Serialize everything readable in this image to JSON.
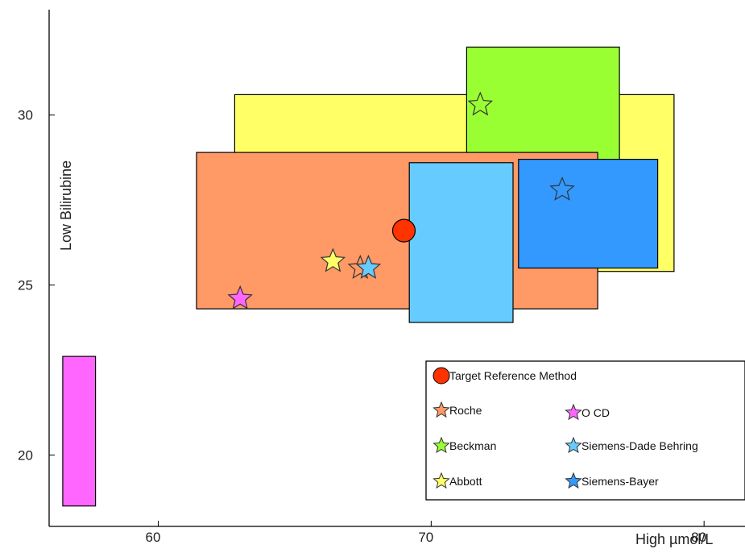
{
  "chart_data": {
    "type": "scatter",
    "title": "",
    "xlabel": "High µmol/L",
    "ylabel": "Low Bilirubine",
    "xlim": [
      56,
      81.5
    ],
    "ylim": [
      17.9,
      33.1
    ],
    "xticks": [
      60,
      70,
      80
    ],
    "yticks": [
      20,
      25,
      30
    ],
    "grid": false,
    "rectangles": [
      {
        "series": "Abbott",
        "x": [
          62.8,
          78.9
        ],
        "y": [
          25.4,
          30.6
        ],
        "color": "#ffff66"
      },
      {
        "series": "Beckman",
        "x": [
          71.3,
          76.9
        ],
        "y": [
          27.7,
          32.0
        ],
        "color": "#99ff33"
      },
      {
        "series": "Roche",
        "x": [
          61.4,
          76.1
        ],
        "y": [
          24.3,
          28.9
        ],
        "color": "#ff9966"
      },
      {
        "series": "Siemens-Dade Behring",
        "x": [
          69.2,
          73.0
        ],
        "y": [
          23.9,
          28.6
        ],
        "color": "#66ccff"
      },
      {
        "series": "Siemens-Bayer",
        "x": [
          73.2,
          78.3
        ],
        "y": [
          25.5,
          28.7
        ],
        "color": "#3399ff"
      },
      {
        "series": "OCD",
        "x": [
          56.5,
          57.7
        ],
        "y": [
          18.5,
          22.9
        ],
        "color": "#ff66ff"
      }
    ],
    "points": [
      {
        "series": "Target Reference Method",
        "marker": "circle",
        "x": 69.0,
        "y": 26.6,
        "color": "#ff3300"
      },
      {
        "series": "Beckman",
        "marker": "star",
        "x": 71.8,
        "y": 30.3,
        "color": "#99ff33"
      },
      {
        "series": "Siemens-Bayer",
        "marker": "star",
        "x": 74.8,
        "y": 27.8,
        "color": "#3399ff"
      },
      {
        "series": "Abbott",
        "marker": "star",
        "x": 66.4,
        "y": 25.7,
        "color": "#ffff66"
      },
      {
        "series": "Roche",
        "marker": "star",
        "x": 67.4,
        "y": 25.5,
        "color": "#ff9966"
      },
      {
        "series": "Siemens-Dade Behring",
        "marker": "star",
        "x": 67.7,
        "y": 25.5,
        "color": "#66ccff"
      },
      {
        "series": "OCD",
        "marker": "star",
        "x": 63.0,
        "y": 24.6,
        "color": "#ff66ff"
      }
    ],
    "legend": {
      "placement": "bottom-right",
      "entries": [
        {
          "label": "Target Reference Method",
          "marker": "circle",
          "color": "#ff3300"
        },
        {
          "label": "Roche",
          "marker": "star",
          "color": "#ff9966"
        },
        {
          "label": "O CD",
          "marker": "star",
          "color": "#ff66ff"
        },
        {
          "label": "Beckman",
          "marker": "star",
          "color": "#99ff33"
        },
        {
          "label": "Siemens-Dade Behring",
          "marker": "star",
          "color": "#66ccff"
        },
        {
          "label": "Abbott",
          "marker": "star",
          "color": "#ffff66"
        },
        {
          "label": "Siemens-Bayer",
          "marker": "star",
          "color": "#3399ff"
        }
      ]
    }
  }
}
